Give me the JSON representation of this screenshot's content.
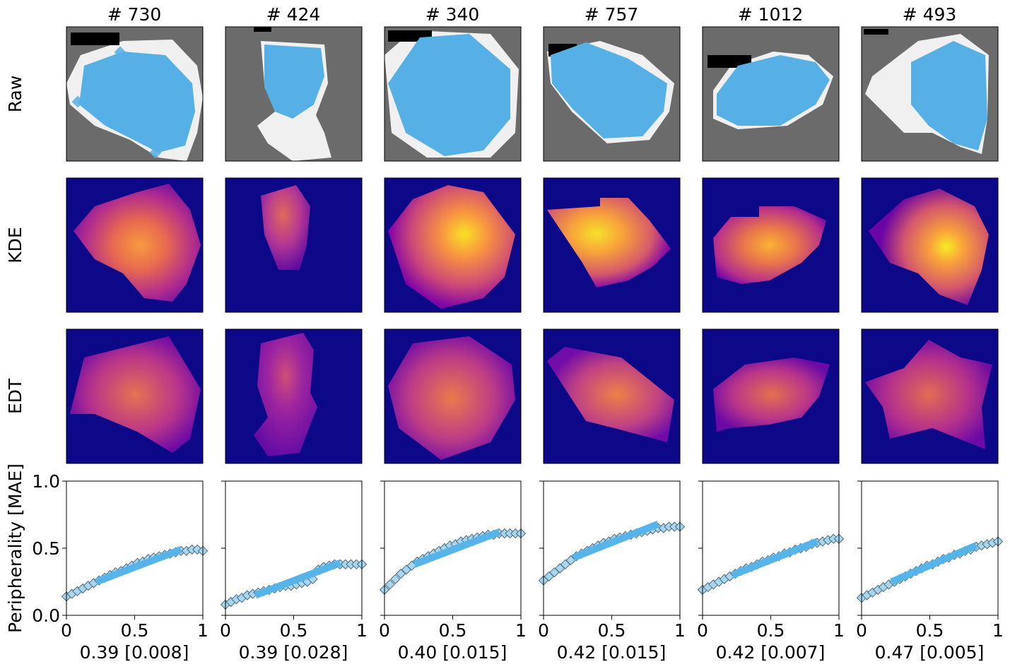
{
  "figure": {
    "row_labels": [
      "Raw",
      "KDE",
      "EDT"
    ],
    "y_axis_label": "Peripherality [MAE]"
  },
  "colors": {
    "scatter_blue": "#56b0e6",
    "marker_fill": "#a8d6ee",
    "marker_edge": "#4a6a7a",
    "fit_line": "#56b4e9",
    "raw_background": "#6b6b6b",
    "raw_region": "#f0f0f0",
    "heatmap_low": "#0d0887",
    "heatmap_mid": "#cc4778",
    "heatmap_high": "#f0f921"
  },
  "columns": [
    {
      "title": "# 730",
      "caption": "0.39 [0.008]"
    },
    {
      "title": "# 424",
      "caption": "0.39 [0.028]"
    },
    {
      "title": "# 340",
      "caption": "0.40 [0.015]"
    },
    {
      "title": "# 757",
      "caption": "0.42 [0.015]"
    },
    {
      "title": "# 1012",
      "caption": "0.42 [0.007]"
    },
    {
      "title": "# 493",
      "caption": "0.47 [0.005]"
    }
  ],
  "chart_data": [
    {
      "type": "scatter",
      "title": "# 730",
      "xlabel": "0.39 [0.008]",
      "ylabel": "Peripherality [MAE]",
      "xlim": [
        0,
        1
      ],
      "ylim": [
        0,
        1
      ],
      "x_ticks": [
        "0",
        "0.5",
        "1"
      ],
      "y_ticks": [
        "0.0",
        "0.5",
        "1.0"
      ],
      "x": [
        0,
        0.04,
        0.08,
        0.12,
        0.16,
        0.2,
        0.24,
        0.28,
        0.32,
        0.36,
        0.4,
        0.44,
        0.48,
        0.52,
        0.56,
        0.6,
        0.64,
        0.68,
        0.72,
        0.76,
        0.8,
        0.84,
        0.88,
        0.92,
        0.96,
        1.0
      ],
      "y": [
        0.14,
        0.16,
        0.18,
        0.2,
        0.22,
        0.24,
        0.26,
        0.28,
        0.3,
        0.32,
        0.33,
        0.35,
        0.37,
        0.39,
        0.4,
        0.42,
        0.43,
        0.44,
        0.45,
        0.46,
        0.47,
        0.48,
        0.48,
        0.49,
        0.49,
        0.48
      ],
      "fit": {
        "x": [
          0.22,
          0.84
        ],
        "y": [
          0.25,
          0.49
        ]
      }
    },
    {
      "type": "scatter",
      "title": "# 424",
      "xlabel": "0.39 [0.028]",
      "ylabel": "Peripherality [MAE]",
      "xlim": [
        0,
        1
      ],
      "ylim": [
        0,
        1
      ],
      "x_ticks": [
        "0",
        "0.5",
        "1"
      ],
      "y_ticks": [
        "0.0",
        "0.5",
        "1.0"
      ],
      "x": [
        0,
        0.04,
        0.08,
        0.12,
        0.16,
        0.2,
        0.24,
        0.28,
        0.32,
        0.36,
        0.4,
        0.44,
        0.48,
        0.52,
        0.56,
        0.6,
        0.64,
        0.68,
        0.72,
        0.76,
        0.8,
        0.84,
        0.88,
        0.92,
        0.96,
        1.0
      ],
      "y": [
        0.08,
        0.1,
        0.12,
        0.13,
        0.15,
        0.16,
        0.17,
        0.18,
        0.19,
        0.2,
        0.21,
        0.22,
        0.22,
        0.23,
        0.24,
        0.25,
        0.27,
        0.34,
        0.36,
        0.37,
        0.38,
        0.38,
        0.38,
        0.38,
        0.38,
        0.38
      ],
      "fit": {
        "x": [
          0.22,
          0.84
        ],
        "y": [
          0.15,
          0.39
        ]
      }
    },
    {
      "type": "scatter",
      "title": "# 340",
      "xlabel": "0.40 [0.015]",
      "ylabel": "Peripherality [MAE]",
      "xlim": [
        0,
        1
      ],
      "ylim": [
        0,
        1
      ],
      "x_ticks": [
        "0",
        "0.5",
        "1"
      ],
      "y_ticks": [
        "0.0",
        "0.5",
        "1.0"
      ],
      "x": [
        0,
        0.04,
        0.08,
        0.12,
        0.16,
        0.2,
        0.24,
        0.28,
        0.32,
        0.36,
        0.4,
        0.44,
        0.48,
        0.52,
        0.56,
        0.6,
        0.64,
        0.68,
        0.72,
        0.76,
        0.8,
        0.84,
        0.88,
        0.92,
        0.96,
        1.0
      ],
      "y": [
        0.19,
        0.23,
        0.27,
        0.31,
        0.34,
        0.37,
        0.4,
        0.42,
        0.44,
        0.46,
        0.48,
        0.5,
        0.52,
        0.53,
        0.55,
        0.56,
        0.57,
        0.58,
        0.59,
        0.6,
        0.6,
        0.61,
        0.61,
        0.61,
        0.61,
        0.61
      ],
      "fit": {
        "x": [
          0.22,
          0.84
        ],
        "y": [
          0.38,
          0.62
        ]
      }
    },
    {
      "type": "scatter",
      "title": "# 757",
      "xlabel": "0.42 [0.015]",
      "ylabel": "Peripherality [MAE]",
      "xlim": [
        0,
        1
      ],
      "ylim": [
        0,
        1
      ],
      "x_ticks": [
        "0",
        "0.5",
        "1"
      ],
      "y_ticks": [
        "0.0",
        "0.5",
        "1.0"
      ],
      "x": [
        0,
        0.04,
        0.08,
        0.12,
        0.16,
        0.2,
        0.24,
        0.28,
        0.32,
        0.36,
        0.4,
        0.44,
        0.48,
        0.52,
        0.56,
        0.6,
        0.64,
        0.68,
        0.72,
        0.76,
        0.8,
        0.84,
        0.88,
        0.92,
        0.96,
        1.0
      ],
      "y": [
        0.26,
        0.29,
        0.32,
        0.35,
        0.38,
        0.41,
        0.44,
        0.46,
        0.48,
        0.5,
        0.52,
        0.54,
        0.55,
        0.57,
        0.58,
        0.59,
        0.6,
        0.61,
        0.62,
        0.63,
        0.64,
        0.65,
        0.65,
        0.66,
        0.66,
        0.66
      ],
      "fit": {
        "x": [
          0.22,
          0.84
        ],
        "y": [
          0.43,
          0.68
        ]
      }
    },
    {
      "type": "scatter",
      "title": "# 1012",
      "xlabel": "0.42 [0.007]",
      "ylabel": "Peripherality [MAE]",
      "xlim": [
        0,
        1
      ],
      "ylim": [
        0,
        1
      ],
      "x_ticks": [
        "0",
        "0.5",
        "1"
      ],
      "y_ticks": [
        "0.0",
        "0.5",
        "1.0"
      ],
      "x": [
        0,
        0.04,
        0.08,
        0.12,
        0.16,
        0.2,
        0.24,
        0.28,
        0.32,
        0.36,
        0.4,
        0.44,
        0.48,
        0.52,
        0.56,
        0.6,
        0.64,
        0.68,
        0.72,
        0.76,
        0.8,
        0.84,
        0.88,
        0.92,
        0.96,
        1.0
      ],
      "y": [
        0.19,
        0.21,
        0.23,
        0.25,
        0.27,
        0.29,
        0.31,
        0.33,
        0.35,
        0.36,
        0.38,
        0.4,
        0.41,
        0.43,
        0.44,
        0.46,
        0.47,
        0.49,
        0.5,
        0.51,
        0.53,
        0.54,
        0.55,
        0.56,
        0.57,
        0.57
      ],
      "fit": {
        "x": [
          0.22,
          0.84
        ],
        "y": [
          0.3,
          0.55
        ]
      }
    },
    {
      "type": "scatter",
      "title": "# 493",
      "xlabel": "0.47 [0.005]",
      "ylabel": "Peripherality [MAE]",
      "xlim": [
        0,
        1
      ],
      "ylim": [
        0,
        1
      ],
      "x_ticks": [
        "0",
        "0.5",
        "1"
      ],
      "y_ticks": [
        "0.0",
        "0.5",
        "1.0"
      ],
      "x": [
        0,
        0.04,
        0.08,
        0.12,
        0.16,
        0.2,
        0.24,
        0.28,
        0.32,
        0.36,
        0.4,
        0.44,
        0.48,
        0.52,
        0.56,
        0.6,
        0.64,
        0.68,
        0.72,
        0.76,
        0.8,
        0.84,
        0.88,
        0.92,
        0.96,
        1.0
      ],
      "y": [
        0.13,
        0.15,
        0.17,
        0.19,
        0.21,
        0.23,
        0.25,
        0.27,
        0.29,
        0.31,
        0.33,
        0.35,
        0.37,
        0.38,
        0.4,
        0.42,
        0.43,
        0.45,
        0.46,
        0.48,
        0.49,
        0.51,
        0.52,
        0.53,
        0.54,
        0.55
      ],
      "fit": {
        "x": [
          0.22,
          0.84
        ],
        "y": [
          0.25,
          0.52
        ]
      }
    }
  ]
}
